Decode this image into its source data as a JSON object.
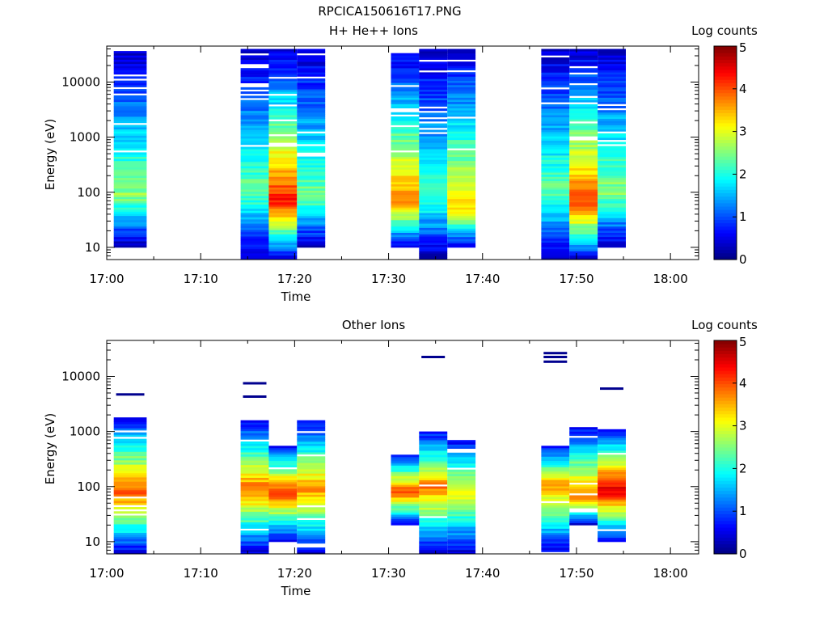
{
  "figure": {
    "title": "RPCICA150616T17.PNG"
  },
  "chart_data": [
    {
      "type": "heatmap",
      "title": "H+ He++ Ions",
      "xlabel": "Time",
      "ylabel": "Energy (eV)",
      "xlim": [
        "17:00",
        "18:03"
      ],
      "ylim": [
        6,
        45000
      ],
      "y_scale": "log",
      "x_ticks": [
        "17:00",
        "17:10",
        "17:20",
        "17:30",
        "17:40",
        "17:50",
        "18:00"
      ],
      "y_ticks": [
        10,
        100,
        1000,
        10000
      ],
      "y_tick_labels": [
        "10",
        "100",
        "1000",
        "10000"
      ],
      "colorbar": {
        "label": "Log counts",
        "range": [
          0,
          5
        ],
        "ticks": [
          "0",
          "1",
          "2",
          "3",
          "4",
          "5"
        ]
      },
      "columns": [
        {
          "t_start": "17:00:45",
          "t_end": "17:04:15",
          "e_min": 10,
          "e_max": 40000,
          "peak_energy": 90,
          "peak": 2.6
        },
        {
          "t_start": "17:14:15",
          "t_end": "17:17:15",
          "e_min": 6,
          "e_max": 40000,
          "peak_energy": 110,
          "peak": 2.4
        },
        {
          "t_start": "17:17:15",
          "t_end": "17:20:15",
          "e_min": 6,
          "e_max": 40000,
          "peak_energy": 70,
          "peak": 4.3
        },
        {
          "t_start": "17:20:15",
          "t_end": "17:23:15",
          "e_min": 10,
          "e_max": 40000,
          "peak_energy": 80,
          "peak": 2.5
        },
        {
          "t_start": "17:30:15",
          "t_end": "17:33:15",
          "e_min": 10,
          "e_max": 40000,
          "peak_energy": 70,
          "peak": 3.8
        },
        {
          "t_start": "17:33:15",
          "t_end": "17:36:15",
          "e_min": 6,
          "e_max": 40000,
          "peak_energy": 80,
          "peak": 2.2
        },
        {
          "t_start": "17:36:15",
          "t_end": "17:39:15",
          "e_min": 10,
          "e_max": 40000,
          "peak_energy": 50,
          "peak": 3.4
        },
        {
          "t_start": "17:46:15",
          "t_end": "17:49:15",
          "e_min": 6,
          "e_max": 40000,
          "peak_energy": 100,
          "peak": 2.4
        },
        {
          "t_start": "17:49:15",
          "t_end": "17:52:15",
          "e_min": 6,
          "e_max": 40000,
          "peak_energy": 60,
          "peak": 4.1
        },
        {
          "t_start": "17:52:15",
          "t_end": "17:55:15",
          "e_min": 10,
          "e_max": 40000,
          "peak_energy": 100,
          "peak": 2.6
        }
      ]
    },
    {
      "type": "heatmap",
      "title": "Other Ions",
      "xlabel": "Time",
      "ylabel": "Energy (eV)",
      "xlim": [
        "17:00",
        "18:03"
      ],
      "ylim": [
        6,
        45000
      ],
      "y_scale": "log",
      "x_ticks": [
        "17:00",
        "17:10",
        "17:20",
        "17:30",
        "17:40",
        "17:50",
        "18:00"
      ],
      "y_ticks": [
        10,
        100,
        1000,
        10000
      ],
      "y_tick_labels": [
        "10",
        "100",
        "1000",
        "10000"
      ],
      "colorbar": {
        "label": "Log counts",
        "range": [
          0,
          5
        ],
        "ticks": [
          "0",
          "1",
          "2",
          "3",
          "4",
          "5"
        ]
      },
      "columns": [
        {
          "t_start": "17:00:45",
          "t_end": "17:04:15",
          "e_min": 6,
          "e_max": 1800,
          "peak_energy": 80,
          "peak": 4.0
        },
        {
          "t_start": "17:14:15",
          "t_end": "17:17:15",
          "e_min": 6,
          "e_max": 1600,
          "peak_energy": 90,
          "peak": 3.9
        },
        {
          "t_start": "17:17:15",
          "t_end": "17:20:15",
          "e_min": 10,
          "e_max": 550,
          "peak_energy": 80,
          "peak": 4.2
        },
        {
          "t_start": "17:20:15",
          "t_end": "17:23:15",
          "e_min": 6,
          "e_max": 1600,
          "peak_energy": 90,
          "peak": 3.7
        },
        {
          "t_start": "17:30:15",
          "t_end": "17:33:15",
          "e_min": 20,
          "e_max": 380,
          "peak_energy": 80,
          "peak": 4.1
        },
        {
          "t_start": "17:33:15",
          "t_end": "17:36:15",
          "e_min": 6,
          "e_max": 1000,
          "peak_energy": 100,
          "peak": 3.8
        },
        {
          "t_start": "17:36:15",
          "t_end": "17:39:15",
          "e_min": 6,
          "e_max": 700,
          "peak_energy": 80,
          "peak": 3.3
        },
        {
          "t_start": "17:46:15",
          "t_end": "17:49:15",
          "e_min": 6,
          "e_max": 550,
          "peak_energy": 110,
          "peak": 3.7
        },
        {
          "t_start": "17:49:15",
          "t_end": "17:52:15",
          "e_min": 20,
          "e_max": 1200,
          "peak_energy": 70,
          "peak": 3.9
        },
        {
          "t_start": "17:52:15",
          "t_end": "17:55:15",
          "e_min": 10,
          "e_max": 1100,
          "peak_energy": 90,
          "peak": 4.6
        }
      ],
      "isolated_lines": [
        {
          "t_start": "17:01:00",
          "t_end": "17:04:00",
          "energy": 4700
        },
        {
          "t_start": "17:14:30",
          "t_end": "17:17:00",
          "energy": 7500
        },
        {
          "t_start": "17:14:30",
          "t_end": "17:17:00",
          "energy": 4300
        },
        {
          "t_start": "17:33:30",
          "t_end": "17:36:00",
          "energy": 22500
        },
        {
          "t_start": "17:46:30",
          "t_end": "17:49:00",
          "energy": 26500
        },
        {
          "t_start": "17:46:30",
          "t_end": "17:49:00",
          "energy": 22500
        },
        {
          "t_start": "17:46:30",
          "t_end": "17:49:00",
          "energy": 18500
        },
        {
          "t_start": "17:52:30",
          "t_end": "17:55:00",
          "energy": 6000
        }
      ]
    }
  ]
}
